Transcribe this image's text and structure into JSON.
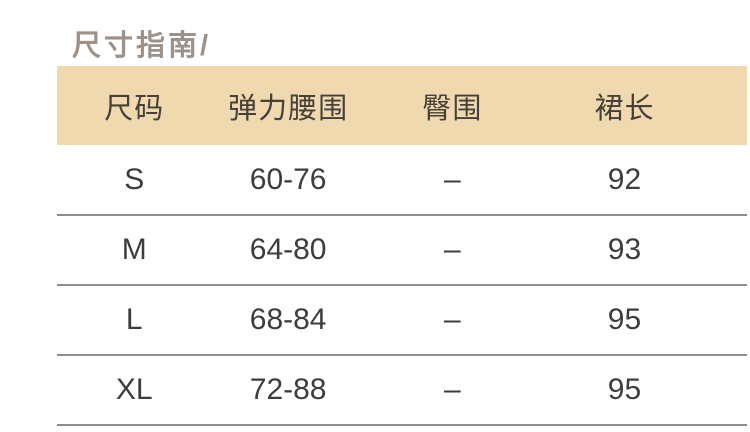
{
  "title": "尺寸指南/",
  "table": {
    "columns": [
      "尺码",
      "弹力腰围",
      "臀围",
      "裙长"
    ],
    "rows": [
      {
        "size": "S",
        "waist": "60-76",
        "hip": "–",
        "length": "92"
      },
      {
        "size": "M",
        "waist": "64-80",
        "hip": "–",
        "length": "93"
      },
      {
        "size": "L",
        "waist": "68-84",
        "hip": "–",
        "length": "95"
      },
      {
        "size": "XL",
        "waist": "72-88",
        "hip": "–",
        "length": "95"
      }
    ]
  },
  "colors": {
    "page_background": "#ffffff",
    "title_text": "#9d9289",
    "header_background": "#f0d9af",
    "header_text": "#46403a",
    "body_text": "#3d3d3d",
    "divider": "#8d8d8d"
  }
}
